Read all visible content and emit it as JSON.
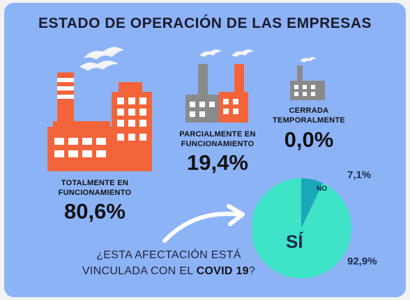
{
  "title": "ESTADO DE OPERACIÓN DE LAS EMPRESAS",
  "status": {
    "total": {
      "label_line1": "TOTALMENTE EN",
      "label_line2": "FUNCIONAMIENTO",
      "value": "80,6%"
    },
    "partial": {
      "label_line1": "PARCIALMENTE EN",
      "label_line2": "FUNCIONAMIENTO",
      "value": "19,4%"
    },
    "closed": {
      "label_line1": "CERRADA",
      "label_line2": "TEMPORALMENTE",
      "value": "0,0%"
    }
  },
  "question": {
    "line1": "¿ESTA AFECTACIÓN ESTÁ",
    "line2_prefix": "VINCULADA CON EL ",
    "line2_bold": "COVID 19",
    "line2_suffix": "?"
  },
  "chart_data": {
    "type": "pie",
    "title": "",
    "slices": [
      {
        "label": "SÍ",
        "value": 92.9,
        "value_label": "92,9%",
        "color": "#3fe3c8"
      },
      {
        "label": "NO",
        "value": 7.1,
        "value_label": "7,1%",
        "color": "#1aa7b8"
      }
    ]
  },
  "colors": {
    "background": "#8db3f7",
    "factory_orange": "#f4643a",
    "factory_gray": "#8a8a8a",
    "arrow": "#ffffff"
  }
}
